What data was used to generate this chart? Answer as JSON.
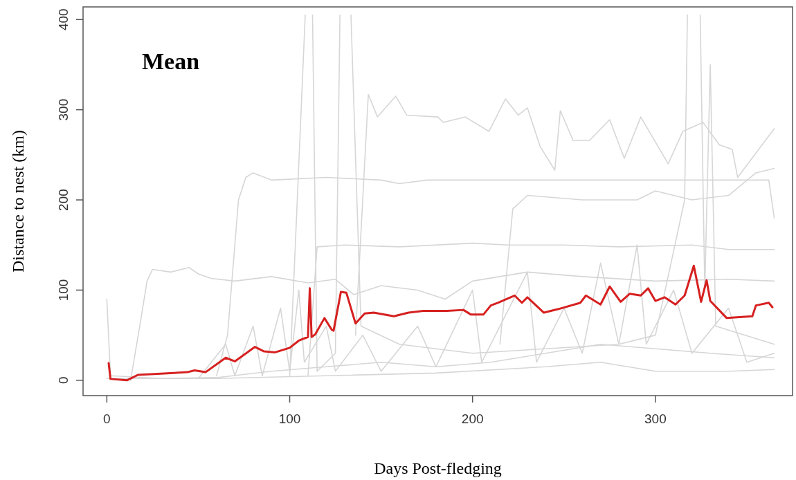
{
  "chart_data": {
    "type": "line",
    "xlabel": "Days Post-fledging",
    "ylabel": "Distance to nest (km)",
    "annotations": [
      "Mean"
    ],
    "xlim": [
      -13,
      375
    ],
    "ylim": [
      -17,
      414
    ],
    "xticks": [
      0,
      100,
      200,
      300
    ],
    "yticks": [
      0,
      100,
      200,
      300,
      400
    ],
    "grid": false,
    "line_style": "solid",
    "series": [
      {
        "color": "#d6d6d6",
        "x": [
          0,
          2,
          30,
          60,
          90,
          120,
          150,
          180,
          210,
          240,
          270,
          300,
          330,
          365
        ],
        "values": [
          90,
          5,
          2,
          3,
          10,
          15,
          20,
          15,
          20,
          30,
          40,
          35,
          30,
          25
        ]
      },
      {
        "color": "#d6d6d6",
        "x": [
          0,
          60,
          120,
          180,
          240,
          270,
          300,
          340,
          365
        ],
        "values": [
          2,
          2,
          5,
          8,
          15,
          20,
          10,
          10,
          12
        ]
      },
      {
        "color": "#d6d6d6",
        "x": [
          50,
          65,
          70,
          80,
          85,
          95,
          100,
          105,
          108,
          120,
          125,
          140,
          150,
          170,
          180,
          200,
          205,
          230,
          235,
          250,
          260,
          270,
          280,
          290,
          295,
          310,
          320,
          340,
          350,
          365
        ],
        "values": [
          2,
          40,
          5,
          60,
          5,
          80,
          10,
          100,
          20,
          60,
          10,
          50,
          10,
          60,
          15,
          100,
          20,
          120,
          20,
          80,
          30,
          130,
          40,
          150,
          40,
          100,
          30,
          80,
          20,
          30
        ]
      },
      {
        "color": "#d6d6d6",
        "x": [
          13,
          18,
          22,
          25,
          35,
          45,
          50,
          57,
          70,
          90,
          110,
          125,
          135,
          150,
          170,
          185,
          200,
          230,
          260,
          300,
          340,
          365
        ],
        "values": [
          0,
          60,
          110,
          123,
          120,
          125,
          118,
          113,
          110,
          115,
          108,
          112,
          95,
          105,
          100,
          90,
          110,
          120,
          115,
          110,
          112,
          110
        ]
      },
      {
        "color": "#d6d6d6",
        "x": [
          60,
          66,
          72,
          76,
          80,
          90,
          120,
          150,
          160,
          175,
          200,
          240,
          270,
          300,
          330,
          362,
          365
        ],
        "values": [
          5,
          50,
          200,
          225,
          230,
          222,
          225,
          222,
          218,
          222,
          222,
          222,
          222,
          222,
          222,
          222,
          180
        ]
      },
      {
        "color": "#d6d6d6",
        "x": [
          110,
          115,
          130,
          160,
          200,
          220,
          250,
          280,
          320,
          340,
          365
        ],
        "values": [
          5,
          148,
          150,
          148,
          152,
          150,
          150,
          148,
          150,
          145,
          145
        ]
      },
      {
        "color": "#d6d6d6",
        "x": [
          215,
          222,
          230,
          260,
          290,
          300,
          320,
          340,
          355,
          365
        ],
        "values": [
          40,
          190,
          205,
          200,
          200,
          210,
          200,
          205,
          230,
          235
        ]
      },
      {
        "color": "#d6d6d6",
        "x": [
          100,
          108.5,
          109,
          112,
          112.5,
          115,
          125,
          127.5,
          128,
          133,
          133.5,
          139,
          160,
          200,
          240,
          280,
          300,
          316,
          317.5,
          318,
          324,
          324.5,
          327,
          330,
          333,
          365
        ],
        "values": [
          5,
          405,
          null,
          null,
          405,
          10,
          30,
          405,
          null,
          null,
          405,
          60,
          40,
          30,
          35,
          40,
          50,
          200,
          405,
          null,
          null,
          405,
          100,
          350,
          60,
          40
        ]
      },
      {
        "color": "#d6d6d6",
        "x": [
          136,
          143,
          148,
          158,
          164,
          181,
          184,
          196,
          209,
          218,
          225,
          230,
          237,
          245,
          248,
          255,
          264,
          275,
          283,
          292,
          307,
          315,
          326,
          335,
          342,
          345,
          365
        ],
        "values": [
          50,
          317,
          292,
          315,
          294,
          292,
          286,
          292,
          276,
          312,
          294,
          302,
          259,
          233,
          299,
          266,
          266,
          289,
          246,
          292,
          240,
          276,
          286,
          261,
          256,
          225,
          279
        ]
      },
      {
        "color": "#d62020",
        "x": [
          1,
          2,
          11,
          17,
          44,
          48,
          54,
          65,
          70,
          81,
          86,
          92,
          100,
          105,
          110,
          111,
          112,
          114,
          119,
          123,
          124,
          128,
          131,
          136,
          141,
          146,
          157,
          165,
          173,
          186,
          195,
          199,
          206,
          210,
          214,
          223,
          227,
          230,
          239,
          247,
          259,
          262,
          270,
          275,
          281,
          286,
          292,
          296,
          300,
          305,
          311,
          316,
          321,
          325,
          328,
          330,
          339,
          353,
          355,
          362,
          364
        ],
        "values": [
          19,
          1.5,
          0,
          6,
          9,
          11,
          9,
          25,
          21,
          37,
          32,
          31,
          36,
          44,
          48,
          102,
          48,
          51,
          69,
          56,
          55,
          98,
          97,
          63,
          74,
          75,
          71,
          75,
          77,
          77,
          78,
          73,
          73,
          83,
          86,
          94,
          86,
          92,
          75,
          79,
          86,
          94,
          84,
          104,
          87,
          96,
          94,
          102,
          88,
          92,
          84,
          94,
          127,
          87,
          111,
          88,
          69,
          71,
          83,
          86,
          81
        ]
      }
    ]
  }
}
